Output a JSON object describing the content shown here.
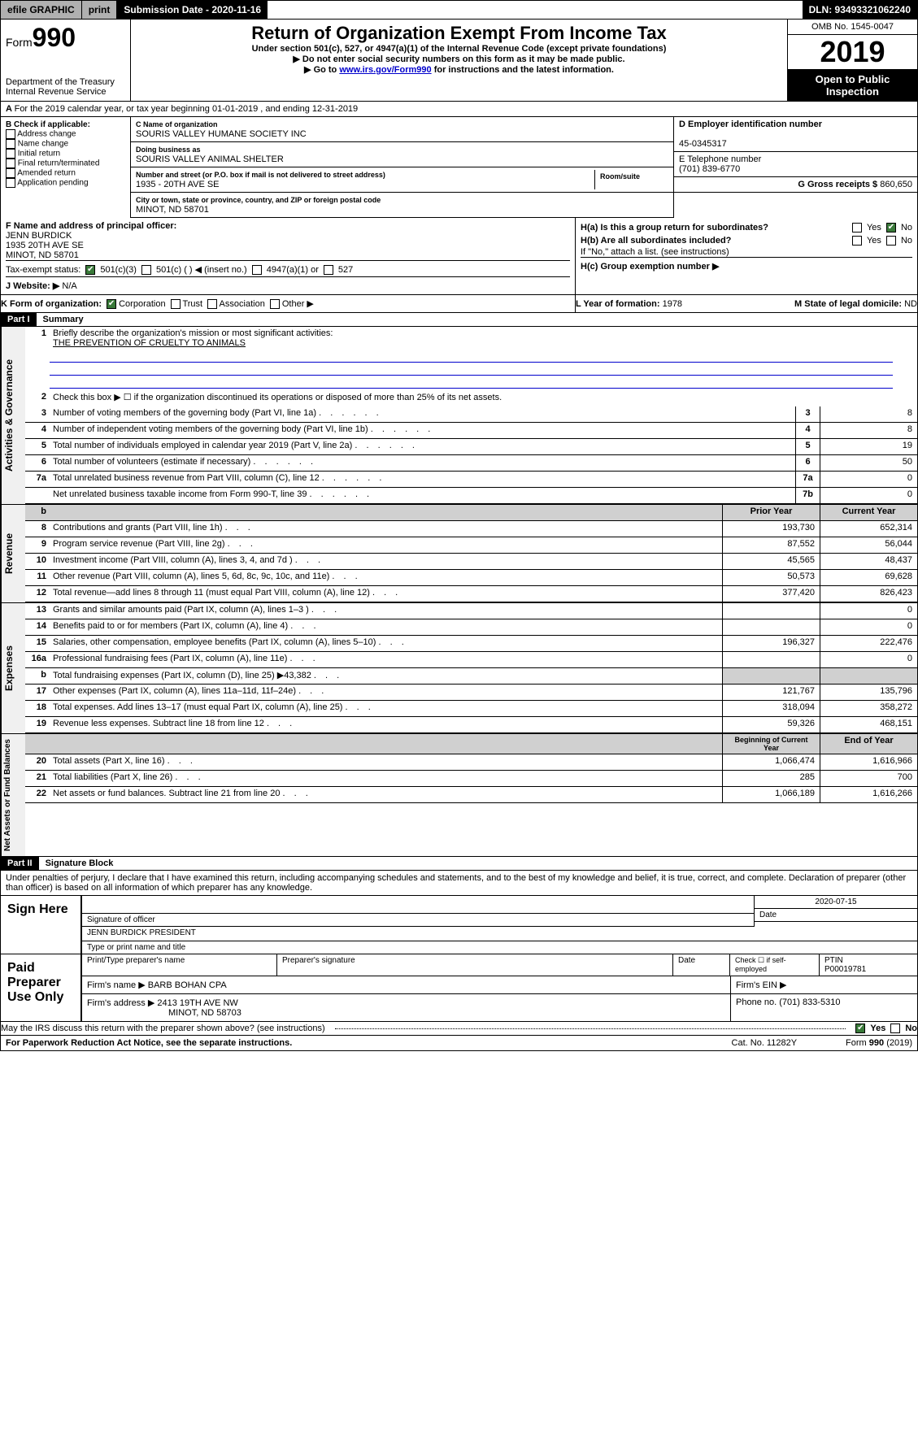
{
  "topbar": {
    "efile": "efile GRAPHIC",
    "print": "print",
    "subdate_lbl": "Submission Date - 2020-11-16",
    "dln": "DLN: 93493321062240"
  },
  "header": {
    "form_prefix": "Form",
    "form_no": "990",
    "dept": "Department of the Treasury\nInternal Revenue Service",
    "title": "Return of Organization Exempt From Income Tax",
    "sub1": "Under section 501(c), 527, or 4947(a)(1) of the Internal Revenue Code (except private foundations)",
    "sub2": "▶ Do not enter social security numbers on this form as it may be made public.",
    "sub3_pre": "▶ Go to ",
    "sub3_link": "www.irs.gov/Form990",
    "sub3_post": " for instructions and the latest information.",
    "omb": "OMB No. 1545-0047",
    "year": "2019",
    "open": "Open to Public Inspection"
  },
  "A": "For the 2019 calendar year, or tax year beginning 01-01-2019   , and ending 12-31-2019",
  "B": {
    "hdr": "B Check if applicable:",
    "opts": [
      "Address change",
      "Name change",
      "Initial return",
      "Final return/terminated",
      "Amended return",
      "Application pending"
    ]
  },
  "C": {
    "lbl": "C Name of organization",
    "name": "SOURIS VALLEY HUMANE SOCIETY INC",
    "dba_lbl": "Doing business as",
    "dba": "SOURIS VALLEY ANIMAL SHELTER",
    "addr_lbl": "Number and street (or P.O. box if mail is not delivered to street address)",
    "room_lbl": "Room/suite",
    "addr": "1935 - 20TH AVE SE",
    "city_lbl": "City or town, state or province, country, and ZIP or foreign postal code",
    "city": "MINOT, ND  58701"
  },
  "D": {
    "lbl": "D Employer identification number",
    "val": "45-0345317"
  },
  "E": {
    "lbl": "E Telephone number",
    "val": "(701) 839-6770"
  },
  "G": {
    "lbl": "G Gross receipts $",
    "val": "860,650"
  },
  "F": {
    "lbl": "F  Name and address of principal officer:",
    "name": "JENN BURDICK",
    "addr1": "1935 20TH AVE SE",
    "addr2": "MINOT, ND  58701"
  },
  "H": {
    "a": "H(a)  Is this a group return for subordinates?",
    "b": "H(b)  Are all subordinates included?",
    "bnote": "If \"No,\" attach a list. (see instructions)",
    "c": "H(c)  Group exemption number ▶",
    "yes": "Yes",
    "no": "No"
  },
  "I": {
    "lbl": "Tax-exempt status:",
    "o1": "501(c)(3)",
    "o2": "501(c) (  ) ◀ (insert no.)",
    "o3": "4947(a)(1) or",
    "o4": "527"
  },
  "J": {
    "lbl": "J   Website: ▶",
    "val": "N/A"
  },
  "K": {
    "lbl": "K Form of organization:",
    "opts": [
      "Corporation",
      "Trust",
      "Association",
      "Other ▶"
    ]
  },
  "L": {
    "lbl": "L Year of formation:",
    "val": "1978"
  },
  "M": {
    "lbl": "M State of legal domicile:",
    "val": "ND"
  },
  "partI": {
    "tag": "Part I",
    "title": "Summary"
  },
  "p1": {
    "l1_lbl": "Briefly describe the organization's mission or most significant activities:",
    "l1_val": "THE PREVENTION OF CRUELTY TO ANIMALS",
    "l2": "Check this box ▶ ☐  if the organization discontinued its operations or disposed of more than 25% of its net assets.",
    "rows_gov": [
      {
        "n": "3",
        "d": "Number of voting members of the governing body (Part VI, line 1a)",
        "c": "3",
        "v": "8"
      },
      {
        "n": "4",
        "d": "Number of independent voting members of the governing body (Part VI, line 1b)",
        "c": "4",
        "v": "8"
      },
      {
        "n": "5",
        "d": "Total number of individuals employed in calendar year 2019 (Part V, line 2a)",
        "c": "5",
        "v": "19"
      },
      {
        "n": "6",
        "d": "Total number of volunteers (estimate if necessary)",
        "c": "6",
        "v": "50"
      },
      {
        "n": "7a",
        "d": "Total unrelated business revenue from Part VIII, column (C), line 12",
        "c": "7a",
        "v": "0"
      },
      {
        "n": "",
        "d": "Net unrelated business taxable income from Form 990-T, line 39",
        "c": "7b",
        "v": "0"
      }
    ],
    "colh": {
      "b": "b",
      "prior": "Prior Year",
      "curr": "Current Year"
    },
    "rows_rev": [
      {
        "n": "8",
        "d": "Contributions and grants (Part VIII, line 1h)",
        "p": "193,730",
        "c": "652,314"
      },
      {
        "n": "9",
        "d": "Program service revenue (Part VIII, line 2g)",
        "p": "87,552",
        "c": "56,044"
      },
      {
        "n": "10",
        "d": "Investment income (Part VIII, column (A), lines 3, 4, and 7d )",
        "p": "45,565",
        "c": "48,437"
      },
      {
        "n": "11",
        "d": "Other revenue (Part VIII, column (A), lines 5, 6d, 8c, 9c, 10c, and 11e)",
        "p": "50,573",
        "c": "69,628"
      },
      {
        "n": "12",
        "d": "Total revenue—add lines 8 through 11 (must equal Part VIII, column (A), line 12)",
        "p": "377,420",
        "c": "826,423"
      }
    ],
    "rows_exp": [
      {
        "n": "13",
        "d": "Grants and similar amounts paid (Part IX, column (A), lines 1–3 )",
        "p": "",
        "c": "0"
      },
      {
        "n": "14",
        "d": "Benefits paid to or for members (Part IX, column (A), line 4)",
        "p": "",
        "c": "0"
      },
      {
        "n": "15",
        "d": "Salaries, other compensation, employee benefits (Part IX, column (A), lines 5–10)",
        "p": "196,327",
        "c": "222,476"
      },
      {
        "n": "16a",
        "d": "Professional fundraising fees (Part IX, column (A), line 11e)",
        "p": "",
        "c": "0"
      },
      {
        "n": "b",
        "d": "Total fundraising expenses (Part IX, column (D), line 25) ▶43,382",
        "p": "GREY",
        "c": "GREY"
      },
      {
        "n": "17",
        "d": "Other expenses (Part IX, column (A), lines 11a–11d, 11f–24e)",
        "p": "121,767",
        "c": "135,796"
      },
      {
        "n": "18",
        "d": "Total expenses. Add lines 13–17 (must equal Part IX, column (A), line 25)",
        "p": "318,094",
        "c": "358,272"
      },
      {
        "n": "19",
        "d": "Revenue less expenses. Subtract line 18 from line 12",
        "p": "59,326",
        "c": "468,151"
      }
    ],
    "colh2": {
      "prior": "Beginning of Current Year",
      "curr": "End of Year"
    },
    "rows_net": [
      {
        "n": "20",
        "d": "Total assets (Part X, line 16)",
        "p": "1,066,474",
        "c": "1,616,966"
      },
      {
        "n": "21",
        "d": "Total liabilities (Part X, line 26)",
        "p": "285",
        "c": "700"
      },
      {
        "n": "22",
        "d": "Net assets or fund balances. Subtract line 21 from line 20",
        "p": "1,066,189",
        "c": "1,616,266"
      }
    ]
  },
  "vtabs": {
    "gov": "Activities & Governance",
    "rev": "Revenue",
    "exp": "Expenses",
    "net": "Net Assets or Fund Balances"
  },
  "partII": {
    "tag": "Part II",
    "title": "Signature Block"
  },
  "perjury": "Under penalties of perjury, I declare that I have examined this return, including accompanying schedules and statements, and to the best of my knowledge and belief, it is true, correct, and complete. Declaration of preparer (other than officer) is based on all information of which preparer has any knowledge.",
  "sign": {
    "here": "Sign Here",
    "sig_lbl": "Signature of officer",
    "date": "2020-07-15",
    "date_lbl": "Date",
    "name": "JENN BURDICK PRESIDENT",
    "name_lbl": "Type or print name and title"
  },
  "paid": {
    "lbl": "Paid Preparer Use Only",
    "c1": "Print/Type preparer's name",
    "c2": "Preparer's signature",
    "c3": "Date",
    "c4a": "Check ☐ if self-employed",
    "c4b_lbl": "PTIN",
    "c4b": "P00019781",
    "firm_lbl": "Firm's name    ▶",
    "firm": "BARB BOHAN CPA",
    "ein_lbl": "Firm's EIN ▶",
    "addr_lbl": "Firm's address ▶",
    "addr1": "2413 19TH AVE NW",
    "addr2": "MINOT, ND  58703",
    "phone_lbl": "Phone no.",
    "phone": "(701) 833-5310"
  },
  "discuss": "May the IRS discuss this return with the preparer shown above? (see instructions)",
  "footer": {
    "l": "For Paperwork Reduction Act Notice, see the separate instructions.",
    "m": "Cat. No. 11282Y",
    "r": "Form 990 (2019)"
  },
  "colors": {
    "link": "#0000cc",
    "grey": "#d0d0d0",
    "green": "#3a7a3a"
  }
}
